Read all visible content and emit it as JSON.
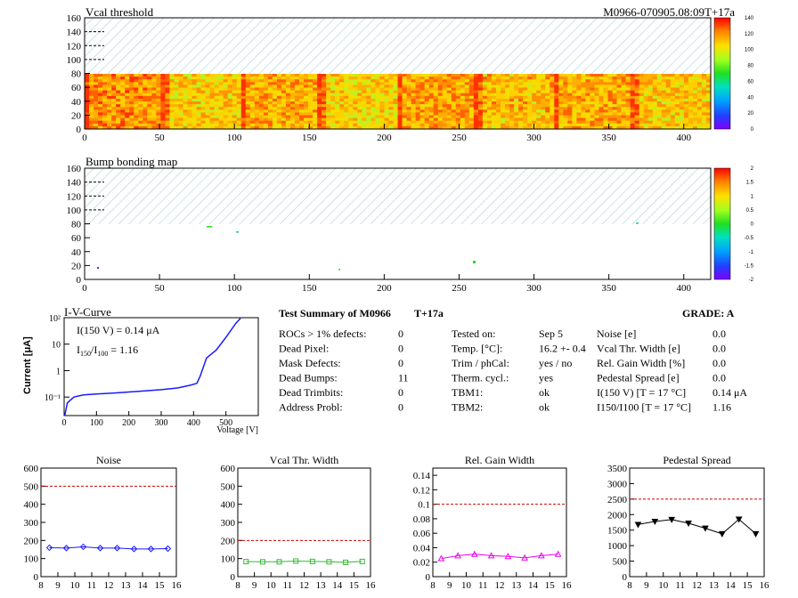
{
  "header": {
    "title_left": "Vcal threshold",
    "title_right": "M0966-070905.08:09T+17a"
  },
  "colors": {
    "hatch": "#9fc9cf",
    "blue_series": "#1a1aff",
    "green_series": "#33bb33",
    "magenta_series": "#ee00ee",
    "black_series": "#000000",
    "limit_line": "#cc0000"
  },
  "map1": {
    "title": "Vcal threshold",
    "x_ticks": [
      "0",
      "50",
      "100",
      "150",
      "200",
      "250",
      "300",
      "350",
      "400"
    ],
    "y_ticks": [
      "0",
      "20",
      "40",
      "60",
      "80",
      "100",
      "120",
      "140",
      "160"
    ],
    "palette_ticks": [
      "0",
      "20",
      "40",
      "60",
      "80",
      "100",
      "120",
      "140"
    ]
  },
  "map2": {
    "title": "Bump bonding map",
    "x_ticks": [
      "0",
      "50",
      "100",
      "150",
      "200",
      "250",
      "300",
      "350",
      "400"
    ],
    "y_ticks": [
      "0",
      "20",
      "40",
      "60",
      "80",
      "100",
      "120",
      "140",
      "160"
    ],
    "palette_ticks": [
      "-2",
      "-1.5",
      "-1",
      "-0.5",
      "0",
      "0.5",
      "1",
      "1.5",
      "2"
    ]
  },
  "iv": {
    "title": "I-V-Curve",
    "ylabel": "Current [μA]",
    "xlabel": "Voltage [V]",
    "note1": "I(150 V) = 0.14 μA",
    "note2_prefix": "I",
    "note2_sub1": "150",
    "note2_mid": "/I",
    "note2_sub2": "100",
    "note2_val": "=  1.16",
    "x_ticks": [
      "0",
      "100",
      "200",
      "300",
      "400",
      "500"
    ],
    "y_ticks": [
      "10⁻¹",
      "1",
      "10",
      "10²"
    ]
  },
  "summary": {
    "title": "Test Summary of M0966",
    "tag": "T+17a",
    "grade": "GRADE:  A",
    "col1": [
      {
        "label": "ROCs > 1% defects:",
        "value": "0"
      },
      {
        "label": "Dead Pixel:",
        "value": "0"
      },
      {
        "label": "Mask Defects:",
        "value": "0"
      },
      {
        "label": "Dead Bumps:",
        "value": "11"
      },
      {
        "label": "Dead Trimbits:",
        "value": "0"
      },
      {
        "label": "Address Probl:",
        "value": "0"
      }
    ],
    "col2": [
      {
        "label": "Tested on:",
        "value": "Sep 5"
      },
      {
        "label": "Temp. [°C]:",
        "value": "16.2 +- 0.4"
      },
      {
        "label": "Trim / phCal:",
        "value": "yes / no"
      },
      {
        "label": "Therm. cycl.:",
        "value": "yes"
      },
      {
        "label": "TBM1:",
        "value": "ok"
      },
      {
        "label": "TBM2:",
        "value": "ok"
      }
    ],
    "col3": [
      {
        "label": "Noise [e]",
        "value": "0.0"
      },
      {
        "label": "Vcal Thr. Width [e]",
        "value": "0.0"
      },
      {
        "label": "Rel. Gain Width [%]",
        "value": "0.0"
      },
      {
        "label": "Pedestal Spread [e]",
        "value": "0.0"
      },
      {
        "label": "I(150 V) [T = 17 °C]",
        "value": "0.14 μA"
      },
      {
        "label": "I150/I100  [T = 17 °C]",
        "value": "1.16"
      }
    ]
  },
  "chart_data": [
    {
      "type": "line",
      "title": "Noise",
      "xlim": [
        8,
        16
      ],
      "ylim": [
        0,
        600
      ],
      "x_ticks": [
        "8",
        "9",
        "10",
        "11",
        "12",
        "13",
        "14",
        "15",
        "16"
      ],
      "y_ticks": [
        "0",
        "100",
        "200",
        "300",
        "400",
        "500",
        "600"
      ],
      "limit": 500,
      "x": [
        8.5,
        9.5,
        10.5,
        11.5,
        12.5,
        13.5,
        14.5,
        15.5
      ],
      "values": [
        160,
        158,
        165,
        158,
        158,
        153,
        153,
        155
      ]
    },
    {
      "type": "line",
      "title": "Vcal Thr. Width",
      "xlim": [
        8,
        16
      ],
      "ylim": [
        0,
        600
      ],
      "x_ticks": [
        "8",
        "9",
        "10",
        "11",
        "12",
        "13",
        "14",
        "15",
        "16"
      ],
      "y_ticks": [
        "0",
        "100",
        "200",
        "300",
        "400",
        "500",
        "600"
      ],
      "limit": 200,
      "x": [
        8.5,
        9.5,
        10.5,
        11.5,
        12.5,
        13.5,
        14.5,
        15.5
      ],
      "values": [
        83,
        82,
        82,
        86,
        84,
        82,
        79,
        84
      ]
    },
    {
      "type": "line",
      "title": "Rel. Gain Width",
      "xlim": [
        8,
        16
      ],
      "ylim": [
        0,
        0.15
      ],
      "x_ticks": [
        "8",
        "9",
        "10",
        "11",
        "12",
        "13",
        "14",
        "15",
        "16"
      ],
      "y_ticks": [
        "0",
        "0.02",
        "0.04",
        "0.06",
        "0.08",
        "0.1",
        "0.12",
        "0.14"
      ],
      "limit": 0.1,
      "x": [
        8.5,
        9.5,
        10.5,
        11.5,
        12.5,
        13.5,
        14.5,
        15.5
      ],
      "values": [
        0.025,
        0.029,
        0.031,
        0.029,
        0.028,
        0.026,
        0.029,
        0.031
      ]
    },
    {
      "type": "line",
      "title": "Pedestal Spread",
      "xlim": [
        8,
        16
      ],
      "ylim": [
        0,
        3500
      ],
      "x_ticks": [
        "8",
        "9",
        "10",
        "11",
        "12",
        "13",
        "14",
        "15",
        "16"
      ],
      "y_ticks": [
        "0",
        "500",
        "1000",
        "1500",
        "2000",
        "2500",
        "3000",
        "3500"
      ],
      "limit": 2500,
      "x": [
        8.5,
        9.5,
        10.5,
        11.5,
        12.5,
        13.5,
        14.5,
        15.5
      ],
      "values": [
        1680,
        1780,
        1840,
        1720,
        1560,
        1380,
        1850,
        1380
      ]
    }
  ]
}
